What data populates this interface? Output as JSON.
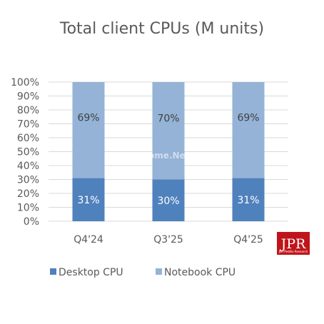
{
  "chart_data": {
    "type": "bar",
    "stacked": true,
    "percent_stacked": true,
    "title": "Total client CPUs (M units)",
    "categories": [
      "Q4'24",
      "Q3'25",
      "Q4'25"
    ],
    "series": [
      {
        "name": "Desktop CPU",
        "values": [
          31,
          30,
          31
        ],
        "labels": [
          "31%",
          "30%",
          "31%"
        ],
        "color": "#4f81bd"
      },
      {
        "name": "Notebook CPU",
        "values": [
          69,
          70,
          69
        ],
        "labels": [
          "69%",
          "70%",
          "69%"
        ],
        "color": "#95b3d7"
      }
    ],
    "yticks": [
      "0%",
      "10%",
      "20%",
      "30%",
      "40%",
      "50%",
      "60%",
      "70%",
      "80%",
      "90%",
      "100%"
    ],
    "ylim": [
      0,
      100
    ],
    "grid": true,
    "legend": "bottom"
  },
  "watermark": "www.Jome.Net",
  "logo": {
    "name": "jpr-logo",
    "mark": "JPR",
    "tagline": "Jon Peddie Research",
    "color": "#c0141b"
  }
}
